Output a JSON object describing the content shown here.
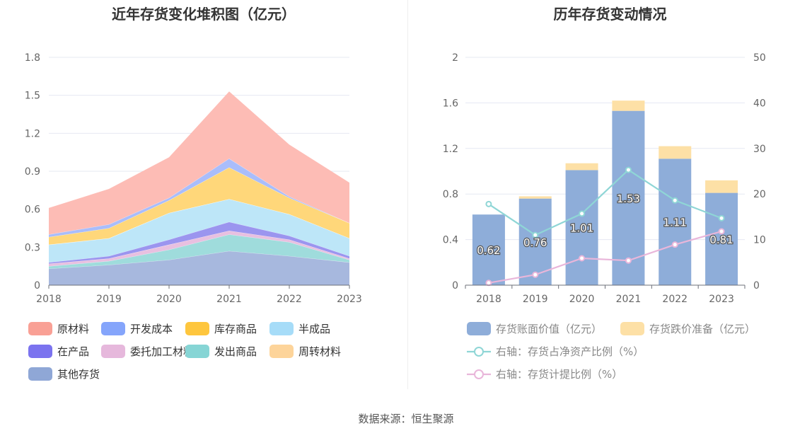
{
  "source_text": "数据来源：恒生聚源",
  "chart_data": [
    {
      "type": "area",
      "stacked": true,
      "title": "近年存货变化堆积图（亿元）",
      "categories": [
        "2018",
        "2019",
        "2020",
        "2021",
        "2022",
        "2023"
      ],
      "ylim": [
        0,
        1.8
      ],
      "yticks": [
        "0",
        "0.3",
        "0.6",
        "0.9",
        "1.2",
        "1.5",
        "1.8"
      ],
      "grid": true,
      "legend_position": "bottom",
      "series": [
        {
          "name": "其他存货",
          "color": "#a7b8de",
          "values": [
            0.13,
            0.16,
            0.2,
            0.27,
            0.23,
            0.18
          ]
        },
        {
          "name": "发出商品",
          "color": "#9fdcdc",
          "values": [
            0.02,
            0.03,
            0.08,
            0.13,
            0.11,
            0.02
          ]
        },
        {
          "name": "委托加工材料",
          "color": "#e8c0e0",
          "values": [
            0.02,
            0.02,
            0.04,
            0.03,
            0.02,
            0.01
          ]
        },
        {
          "name": "在产品",
          "color": "#9b95ef",
          "values": [
            0.01,
            0.02,
            0.04,
            0.07,
            0.03,
            0.02
          ]
        },
        {
          "name": "半成品",
          "color": "#bde6f8",
          "values": [
            0.14,
            0.14,
            0.21,
            0.18,
            0.17,
            0.14
          ]
        },
        {
          "name": "周转材料",
          "color": "#ffe0a8",
          "values": [
            0.0,
            0.0,
            0.0,
            0.0,
            0.0,
            0.0
          ]
        },
        {
          "name": "库存商品",
          "color": "#ffd77a",
          "values": [
            0.06,
            0.08,
            0.1,
            0.25,
            0.13,
            0.12
          ]
        },
        {
          "name": "开发成本",
          "color": "#a9bdfb",
          "values": [
            0.02,
            0.03,
            0.02,
            0.07,
            0.01,
            0.0
          ]
        },
        {
          "name": "原材料",
          "color": "#fdbcb5",
          "values": [
            0.21,
            0.28,
            0.32,
            0.53,
            0.41,
            0.32
          ]
        }
      ],
      "legend": [
        {
          "name": "原材料",
          "color": "#f9a095"
        },
        {
          "name": "开发成本",
          "color": "#85a5fb"
        },
        {
          "name": "库存商品",
          "color": "#fec63e"
        },
        {
          "name": "半成品",
          "color": "#a6dcf8"
        },
        {
          "name": "在产品",
          "color": "#7b73ef"
        },
        {
          "name": "委托加工材料",
          "color": "#e6b8dc"
        },
        {
          "name": "发出商品",
          "color": "#86d5d5"
        },
        {
          "name": "周转材料",
          "color": "#fdd49a"
        },
        {
          "name": "其他存货",
          "color": "#8fa7d6"
        }
      ]
    },
    {
      "type": "bar",
      "stacked": true,
      "title": "历年存货变动情况",
      "categories": [
        "2018",
        "2019",
        "2020",
        "2021",
        "2022",
        "2023"
      ],
      "ylim": [
        0,
        2
      ],
      "yticks": [
        "0",
        "0.4",
        "0.8",
        "1.2",
        "1.6",
        "2"
      ],
      "y2lim": [
        0,
        50
      ],
      "y2ticks": [
        "0",
        "10",
        "20",
        "30",
        "40",
        "50"
      ],
      "grid": true,
      "legend_position": "bottom",
      "series": [
        {
          "name": "存货账面价值（亿元）",
          "type": "bar",
          "color": "#8eadd9",
          "values": [
            0.62,
            0.76,
            1.01,
            1.53,
            1.11,
            0.81
          ],
          "labels": [
            "0.62",
            "0.76",
            "1.01",
            "1.53",
            "1.11",
            "0.81"
          ]
        },
        {
          "name": "存货跌价准备（亿元）",
          "type": "bar",
          "color": "#fde0a6",
          "values": [
            0.0,
            0.02,
            0.06,
            0.09,
            0.11,
            0.11
          ]
        },
        {
          "name": "右轴：存货占净资产比例（%）",
          "type": "line",
          "axis": "right",
          "color": "#8fd6d6",
          "values": [
            17.8,
            11.0,
            15.7,
            25.3,
            18.6,
            14.7
          ]
        },
        {
          "name": "右轴：存货计提比例（%）",
          "type": "line",
          "axis": "right",
          "color": "#e9b6da",
          "values": [
            0.5,
            2.3,
            5.9,
            5.4,
            8.9,
            11.8
          ]
        }
      ]
    }
  ]
}
